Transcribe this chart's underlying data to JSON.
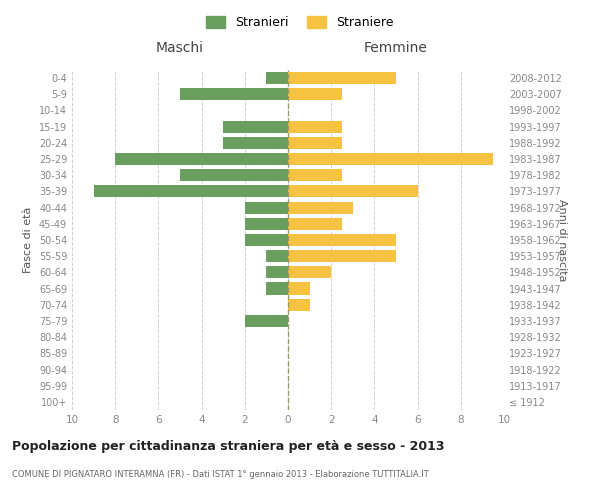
{
  "age_groups": [
    "100+",
    "95-99",
    "90-94",
    "85-89",
    "80-84",
    "75-79",
    "70-74",
    "65-69",
    "60-64",
    "55-59",
    "50-54",
    "45-49",
    "40-44",
    "35-39",
    "30-34",
    "25-29",
    "20-24",
    "15-19",
    "10-14",
    "5-9",
    "0-4"
  ],
  "birth_years": [
    "≤ 1912",
    "1913-1917",
    "1918-1922",
    "1923-1927",
    "1928-1932",
    "1933-1937",
    "1938-1942",
    "1943-1947",
    "1948-1952",
    "1953-1957",
    "1958-1962",
    "1963-1967",
    "1968-1972",
    "1973-1977",
    "1978-1982",
    "1983-1987",
    "1988-1992",
    "1993-1997",
    "1998-2002",
    "2003-2007",
    "2008-2012"
  ],
  "maschi": [
    0,
    0,
    0,
    0,
    0,
    2,
    0,
    1,
    1,
    1,
    2,
    2,
    2,
    9,
    5,
    8,
    3,
    3,
    0,
    5,
    1
  ],
  "femmine": [
    0,
    0,
    0,
    0,
    0,
    0,
    1,
    1,
    2,
    5,
    5,
    2.5,
    3,
    6,
    2.5,
    9.5,
    2.5,
    2.5,
    0,
    2.5,
    5
  ],
  "maschi_color": "#6a9e5e",
  "femmine_color": "#f5c242",
  "background_color": "#ffffff",
  "grid_color": "#d0d0d0",
  "title": "Popolazione per cittadinanza straniera per età e sesso - 2013",
  "subtitle": "COMUNE DI PIGNATARO INTERAMNA (FR) - Dati ISTAT 1° gennaio 2013 - Elaborazione TUTTITALIA.IT",
  "xlabel_left": "Maschi",
  "xlabel_right": "Femmine",
  "ylabel_left": "Fasce di età",
  "ylabel_right": "Anni di nascita",
  "legend_stranieri": "Stranieri",
  "legend_straniere": "Straniere",
  "xlim": 10
}
